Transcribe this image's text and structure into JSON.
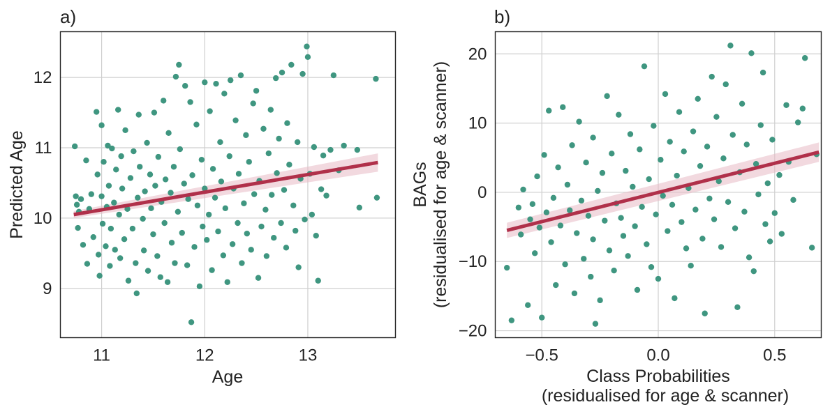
{
  "chart_data": [
    {
      "type": "scatter",
      "panel_label": "a)",
      "xlabel": "Age",
      "ylabel": "Predicted Age",
      "xlim": [
        10.6,
        13.85
      ],
      "ylim": [
        8.3,
        12.65
      ],
      "xticks": [
        11,
        12,
        13
      ],
      "yticks": [
        9,
        10,
        11,
        12
      ],
      "grid": true,
      "point_color": "#3f9680",
      "fit_color": "#b0304a",
      "ci_color": "#e8b9c4",
      "fit": {
        "x": [
          10.73,
          13.68
        ],
        "y": [
          10.05,
          10.79
        ],
        "ci_halfwidth": [
          0.05,
          0.13
        ]
      },
      "points": [
        [
          10.74,
          11.02
        ],
        [
          10.75,
          10.31
        ],
        [
          10.76,
          10.19
        ],
        [
          10.77,
          9.86
        ],
        [
          10.78,
          10.09
        ],
        [
          10.8,
          10.27
        ],
        [
          10.82,
          9.62
        ],
        [
          10.85,
          10.82
        ],
        [
          10.86,
          9.35
        ],
        [
          10.88,
          10.13
        ],
        [
          10.9,
          10.34
        ],
        [
          10.92,
          9.73
        ],
        [
          10.95,
          11.51
        ],
        [
          10.96,
          10.62
        ],
        [
          10.97,
          9.48
        ],
        [
          10.98,
          9.18
        ],
        [
          11.0,
          11.32
        ],
        [
          11.0,
          10.31
        ],
        [
          11.01,
          9.92
        ],
        [
          11.02,
          10.8
        ],
        [
          11.04,
          9.6
        ],
        [
          11.05,
          10.16
        ],
        [
          11.06,
          11.03
        ],
        [
          11.07,
          10.46
        ],
        [
          11.08,
          9.32
        ],
        [
          11.09,
          9.85
        ],
        [
          11.1,
          10.99
        ],
        [
          11.12,
          10.22
        ],
        [
          11.13,
          9.55
        ],
        [
          11.14,
          10.69
        ],
        [
          11.16,
          11.54
        ],
        [
          11.17,
          10.05
        ],
        [
          11.18,
          9.43
        ],
        [
          11.19,
          10.88
        ],
        [
          11.2,
          10.42
        ],
        [
          11.22,
          9.7
        ],
        [
          11.23,
          11.25
        ],
        [
          11.25,
          10.13
        ],
        [
          11.26,
          9.11
        ],
        [
          11.28,
          10.57
        ],
        [
          11.3,
          9.85
        ],
        [
          11.31,
          10.95
        ],
        [
          11.33,
          9.36
        ],
        [
          11.34,
          8.93
        ],
        [
          11.35,
          10.29
        ],
        [
          11.36,
          11.47
        ],
        [
          11.37,
          10.73
        ],
        [
          11.4,
          9.99
        ],
        [
          11.41,
          9.54
        ],
        [
          11.42,
          10.38
        ],
        [
          11.44,
          11.07
        ],
        [
          11.45,
          9.25
        ],
        [
          11.47,
          10.62
        ],
        [
          11.48,
          10.14
        ],
        [
          11.5,
          9.77
        ],
        [
          11.51,
          11.5
        ],
        [
          11.52,
          10.46
        ],
        [
          11.54,
          9.46
        ],
        [
          11.55,
          10.87
        ],
        [
          11.57,
          9.16
        ],
        [
          11.58,
          10.23
        ],
        [
          11.6,
          11.67
        ],
        [
          11.61,
          9.93
        ],
        [
          11.62,
          10.55
        ],
        [
          11.64,
          9.09
        ],
        [
          11.65,
          11.21
        ],
        [
          11.67,
          10.36
        ],
        [
          11.68,
          9.65
        ],
        [
          11.7,
          10.73
        ],
        [
          11.71,
          9.36
        ],
        [
          11.72,
          12.01
        ],
        [
          11.74,
          10.09
        ],
        [
          11.75,
          12.18
        ],
        [
          11.76,
          10.98
        ],
        [
          11.78,
          9.79
        ],
        [
          11.8,
          10.49
        ],
        [
          11.81,
          11.88
        ],
        [
          11.83,
          9.33
        ],
        [
          11.84,
          10.27
        ],
        [
          11.86,
          11.65
        ],
        [
          11.87,
          8.52
        ],
        [
          11.88,
          10.61
        ],
        [
          11.9,
          9.59
        ],
        [
          11.92,
          11.33
        ],
        [
          11.93,
          10.18
        ],
        [
          11.95,
          9.03
        ],
        [
          11.97,
          10.83
        ],
        [
          11.98,
          9.88
        ],
        [
          12.0,
          10.42
        ],
        [
          12.0,
          11.93
        ],
        [
          12.02,
          9.69
        ],
        [
          12.04,
          10.05
        ],
        [
          12.05,
          11.52
        ],
        [
          12.07,
          9.26
        ],
        [
          12.08,
          10.7
        ],
        [
          12.1,
          10.29
        ],
        [
          12.11,
          11.91
        ],
        [
          12.13,
          9.81
        ],
        [
          12.15,
          11.08
        ],
        [
          12.16,
          10.52
        ],
        [
          12.18,
          9.47
        ],
        [
          12.19,
          11.77
        ],
        [
          12.2,
          10.14
        ],
        [
          12.22,
          9.09
        ],
        [
          12.24,
          10.88
        ],
        [
          12.25,
          11.96
        ],
        [
          12.27,
          9.63
        ],
        [
          12.28,
          10.42
        ],
        [
          12.3,
          11.39
        ],
        [
          12.32,
          9.93
        ],
        [
          12.33,
          10.63
        ],
        [
          12.35,
          12.03
        ],
        [
          12.36,
          9.36
        ],
        [
          12.38,
          10.21
        ],
        [
          12.4,
          11.18
        ],
        [
          12.41,
          9.78
        ],
        [
          12.43,
          10.8
        ],
        [
          12.45,
          9.55
        ],
        [
          12.47,
          11.63
        ],
        [
          12.48,
          10.34
        ],
        [
          12.5,
          11.81
        ],
        [
          12.52,
          9.15
        ],
        [
          12.53,
          10.53
        ],
        [
          12.55,
          9.88
        ],
        [
          12.57,
          11.27
        ],
        [
          12.59,
          10.12
        ],
        [
          12.6,
          9.46
        ],
        [
          12.62,
          10.92
        ],
        [
          12.64,
          11.54
        ],
        [
          12.65,
          10.33
        ],
        [
          12.67,
          9.72
        ],
        [
          12.69,
          11.99
        ],
        [
          12.7,
          10.64
        ],
        [
          12.72,
          11.13
        ],
        [
          12.74,
          9.93
        ],
        [
          12.75,
          12.07
        ],
        [
          12.77,
          10.4
        ],
        [
          12.79,
          9.58
        ],
        [
          12.8,
          11.35
        ],
        [
          12.82,
          10.76
        ],
        [
          12.84,
          12.18
        ],
        [
          12.86,
          10.18
        ],
        [
          12.88,
          9.82
        ],
        [
          12.9,
          11.08
        ],
        [
          12.91,
          9.3
        ],
        [
          12.93,
          10.56
        ],
        [
          12.95,
          12.05
        ],
        [
          12.97,
          9.98
        ],
        [
          12.99,
          12.44
        ],
        [
          13.0,
          12.29
        ],
        [
          13.02,
          10.63
        ],
        [
          13.04,
          10.05
        ],
        [
          13.06,
          11.01
        ],
        [
          13.08,
          9.75
        ],
        [
          13.1,
          9.11
        ],
        [
          13.13,
          10.41
        ],
        [
          13.15,
          10.89
        ],
        [
          13.18,
          10.32
        ],
        [
          13.22,
          10.97
        ],
        [
          13.25,
          12.03
        ],
        [
          13.3,
          10.68
        ],
        [
          13.35,
          11.03
        ],
        [
          13.48,
          10.97
        ],
        [
          13.5,
          10.15
        ],
        [
          13.66,
          11.98
        ],
        [
          13.67,
          10.29
        ]
      ]
    },
    {
      "type": "scatter",
      "panel_label": "b)",
      "xlabel": [
        "Class Probabilities",
        "(residualised for age & scanner)"
      ],
      "ylabel": [
        "BAGs",
        "(residualised for age & scanner)"
      ],
      "xlim": [
        -0.7,
        0.7
      ],
      "ylim": [
        -21,
        23.2
      ],
      "xticks": [
        -0.5,
        0.0,
        0.5
      ],
      "xtick_labels": [
        "−0.5",
        "0.0",
        "0.5"
      ],
      "yticks": [
        -20,
        -10,
        0,
        10,
        20
      ],
      "ytick_labels": [
        "−20",
        "−10",
        "0",
        "10",
        "20"
      ],
      "grid": true,
      "point_color": "#3f9680",
      "fit_color": "#b0304a",
      "ci_color": "#e8b9c4",
      "fit": {
        "x": [
          -0.65,
          0.69
        ],
        "y": [
          -5.5,
          5.8
        ],
        "ci_halfwidth": [
          1.1,
          1.4
        ]
      },
      "points": [
        [
          -0.65,
          -10.9
        ],
        [
          -0.63,
          -18.5
        ],
        [
          -0.6,
          -2.2
        ],
        [
          -0.59,
          -6.1
        ],
        [
          -0.58,
          0.4
        ],
        [
          -0.56,
          -16.3
        ],
        [
          -0.55,
          -3.9
        ],
        [
          -0.54,
          -1.7
        ],
        [
          -0.53,
          -8.8
        ],
        [
          -0.52,
          2.3
        ],
        [
          -0.51,
          -5.1
        ],
        [
          -0.5,
          -18.1
        ],
        [
          -0.49,
          5.4
        ],
        [
          -0.48,
          -2.9
        ],
        [
          -0.47,
          11.8
        ],
        [
          -0.46,
          -7.2
        ],
        [
          -0.45,
          -0.8
        ],
        [
          -0.44,
          -13.4
        ],
        [
          -0.43,
          3.6
        ],
        [
          -0.42,
          -4.8
        ],
        [
          -0.41,
          12.3
        ],
        [
          -0.4,
          -10.4
        ],
        [
          -0.39,
          1.1
        ],
        [
          -0.38,
          -2.6
        ],
        [
          -0.37,
          6.8
        ],
        [
          -0.36,
          -14.6
        ],
        [
          -0.35,
          -5.9
        ],
        [
          -0.34,
          10.2
        ],
        [
          -0.33,
          -1.2
        ],
        [
          -0.32,
          -9.6
        ],
        [
          -0.31,
          4.3
        ],
        [
          -0.3,
          -3.4
        ],
        [
          -0.29,
          -12.2
        ],
        [
          -0.28,
          7.9
        ],
        [
          -0.28,
          -6.8
        ],
        [
          -0.27,
          -19.0
        ],
        [
          -0.26,
          0.2
        ],
        [
          -0.25,
          -15.6
        ],
        [
          -0.24,
          2.8
        ],
        [
          -0.23,
          -4.1
        ],
        [
          -0.22,
          13.9
        ],
        [
          -0.21,
          -8.4
        ],
        [
          -0.2,
          5.6
        ],
        [
          -0.19,
          -11.3
        ],
        [
          -0.18,
          -1.6
        ],
        [
          -0.17,
          11.2
        ],
        [
          -0.16,
          -3.7
        ],
        [
          -0.15,
          -6.3
        ],
        [
          -0.14,
          3.1
        ],
        [
          -0.13,
          -9.2
        ],
        [
          -0.12,
          8.4
        ],
        [
          -0.11,
          0.8
        ],
        [
          -0.1,
          -4.9
        ],
        [
          -0.09,
          -14.1
        ],
        [
          -0.08,
          6.2
        ],
        [
          -0.07,
          -2.1
        ],
        [
          -0.06,
          18.2
        ],
        [
          -0.05,
          -7.5
        ],
        [
          -0.04,
          1.9
        ],
        [
          -0.03,
          -10.8
        ],
        [
          -0.02,
          9.6
        ],
        [
          -0.01,
          -3.2
        ],
        [
          0.0,
          -12.5
        ],
        [
          0.01,
          4.7
        ],
        [
          0.02,
          -0.5
        ],
        [
          0.03,
          14.2
        ],
        [
          0.04,
          -5.6
        ],
        [
          0.05,
          7.3
        ],
        [
          0.06,
          -1.8
        ],
        [
          0.07,
          -15.3
        ],
        [
          0.08,
          2.4
        ],
        [
          0.09,
          11.6
        ],
        [
          0.1,
          -4.3
        ],
        [
          0.11,
          5.9
        ],
        [
          0.12,
          -8.1
        ],
        [
          0.13,
          0.6
        ],
        [
          0.14,
          -10.6
        ],
        [
          0.15,
          8.8
        ],
        [
          0.16,
          -2.5
        ],
        [
          0.17,
          13.5
        ],
        [
          0.18,
          3.8
        ],
        [
          0.19,
          -6.7
        ],
        [
          0.2,
          -17.5
        ],
        [
          0.21,
          6.6
        ],
        [
          0.22,
          -0.9
        ],
        [
          0.23,
          16.7
        ],
        [
          0.24,
          -3.9
        ],
        [
          0.25,
          10.9
        ],
        [
          0.26,
          1.6
        ],
        [
          0.27,
          -7.9
        ],
        [
          0.28,
          4.9
        ],
        [
          0.29,
          15.6
        ],
        [
          0.3,
          -1.4
        ],
        [
          0.31,
          21.2
        ],
        [
          0.32,
          8.3
        ],
        [
          0.33,
          -5.2
        ],
        [
          0.34,
          -16.6
        ],
        [
          0.35,
          2.9
        ],
        [
          0.36,
          12.8
        ],
        [
          0.37,
          -2.8
        ],
        [
          0.38,
          6.9
        ],
        [
          0.39,
          -9.4
        ],
        [
          0.4,
          20.1
        ],
        [
          0.41,
          -11.4
        ],
        [
          0.42,
          4.1
        ],
        [
          0.43,
          -0.3
        ],
        [
          0.44,
          9.7
        ],
        [
          0.45,
          17.3
        ],
        [
          0.46,
          -4.6
        ],
        [
          0.47,
          1.3
        ],
        [
          0.48,
          -7.1
        ],
        [
          0.49,
          7.6
        ],
        [
          0.5,
          -3.0
        ],
        [
          0.52,
          2.5
        ],
        [
          0.53,
          -6.0
        ],
        [
          0.55,
          12.6
        ],
        [
          0.56,
          4.4
        ],
        [
          0.58,
          -1.1
        ],
        [
          0.6,
          10.1
        ],
        [
          0.62,
          12.1
        ],
        [
          0.63,
          19.4
        ],
        [
          0.66,
          -8.0
        ],
        [
          0.68,
          5.5
        ]
      ]
    }
  ]
}
